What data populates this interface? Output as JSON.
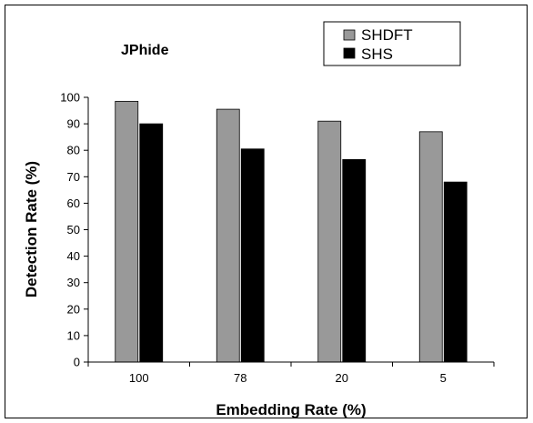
{
  "chart_data": {
    "type": "bar",
    "title": "JPhide",
    "xlabel": "Embedding Rate (%)",
    "ylabel": "Detection Rate (%)",
    "categories": [
      "100",
      "78",
      "20",
      "5"
    ],
    "series": [
      {
        "name": "SHDFT",
        "values": [
          98.5,
          95.5,
          91,
          87
        ],
        "color": "#999999"
      },
      {
        "name": "SHS",
        "values": [
          90,
          80.5,
          76.5,
          68
        ],
        "color": "#000000"
      }
    ],
    "ylim": [
      0,
      100
    ],
    "yticks": [
      "0",
      "10",
      "20",
      "30",
      "40",
      "50",
      "60",
      "70",
      "80",
      "90",
      "100"
    ],
    "grid": false,
    "legend_position": "top-right"
  }
}
